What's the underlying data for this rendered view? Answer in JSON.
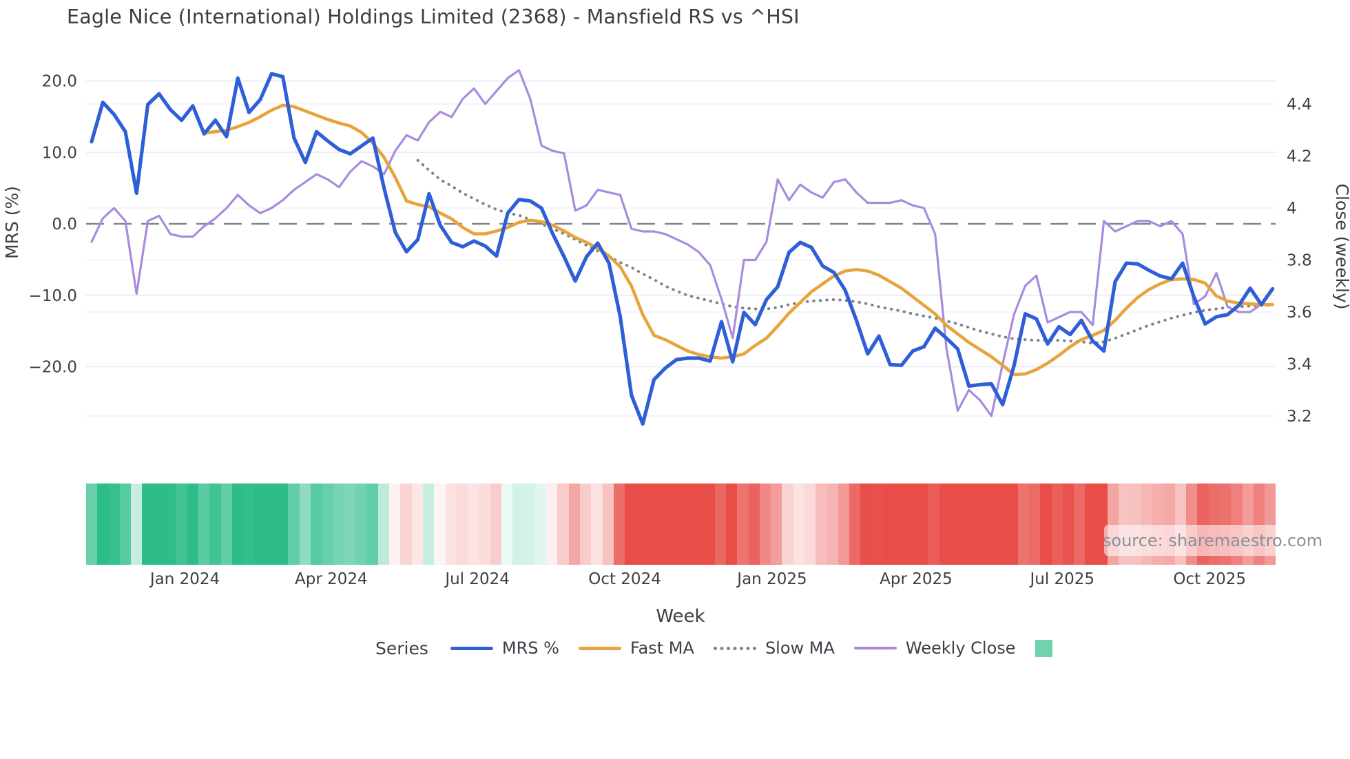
{
  "title": "Eagle Nice (International) Holdings Limited (2368) - Mansfield RS vs ^HSI",
  "source_note": "source: sharemaestro.com",
  "axes": {
    "y_left": {
      "label": "MRS (%)",
      "ticks": [
        "20.0",
        "10.0",
        "0.0",
        "−10.0",
        "−20.0"
      ],
      "tick_values": [
        20,
        10,
        0,
        -10,
        -20
      ]
    },
    "y_right": {
      "label": "Close (weekly)",
      "ticks": [
        "4.4",
        "4.2",
        "4",
        "3.8",
        "3.6",
        "3.4",
        "3.2"
      ],
      "tick_values": [
        4.4,
        4.2,
        4.0,
        3.8,
        3.6,
        3.4,
        3.2
      ]
    },
    "x": {
      "label": "Week",
      "ticks": [
        "Jan 2024",
        "Apr 2024",
        "Jul 2024",
        "Oct 2024",
        "Jan 2025",
        "Apr 2025",
        "Jul 2025",
        "Oct 2025"
      ],
      "tick_weeks": [
        8.3,
        21.3,
        34.3,
        47.4,
        60.5,
        73.3,
        86.3,
        99.4
      ]
    }
  },
  "legend": {
    "title": "Series",
    "items": [
      {
        "label": "MRS %",
        "style": "line",
        "color": "#2e5fd8"
      },
      {
        "label": "Fast MA",
        "style": "line",
        "color": "#e9a33b"
      },
      {
        "label": "Slow MA",
        "style": "dotted",
        "color": "#7d838d"
      },
      {
        "label": "Weekly Close",
        "style": "thinline",
        "color": "#a88be0"
      }
    ],
    "square_color": "#6fd4ab"
  },
  "colors": {
    "mrs": "#2e5fd8",
    "fast_ma": "#e9a33b",
    "slow_ma": "#7d838d",
    "weekly_close": "#a88be0",
    "zero_line": "#82868c",
    "grid": "#eaedf3",
    "tick_text": "#3c4043",
    "strip_green": "#2ebd89",
    "strip_red": "#e84d48"
  },
  "chart_data": {
    "type": "line",
    "x_unit": "week_index",
    "n_weeks": 105,
    "title": "Eagle Nice (International) Holdings Limited (2368) - Mansfield RS vs ^HSI",
    "xlabel": "Week",
    "ylabel_left": "MRS (%)",
    "ylabel_right": "Close (weekly)",
    "ylim_left": [
      -30,
      23
    ],
    "ylim_right": [
      3.09,
      4.57
    ],
    "zero_reference_line": 0,
    "grid": true,
    "legend_position": "bottom",
    "series": [
      {
        "name": "MRS %",
        "axis": "left",
        "values": [
          11.5,
          17.0,
          15.3,
          12.9,
          4.3,
          16.7,
          18.2,
          16.0,
          14.5,
          16.5,
          12.6,
          14.5,
          12.2,
          20.4,
          15.6,
          17.4,
          21.0,
          20.6,
          12.0,
          8.6,
          12.9,
          11.6,
          10.4,
          9.8,
          10.9,
          12.0,
          5.0,
          -1.2,
          -3.9,
          -2.2,
          4.2,
          -0.2,
          -2.6,
          -3.2,
          -2.4,
          -3.1,
          -4.5,
          1.5,
          3.4,
          3.2,
          2.2,
          -1.4,
          -4.6,
          -8.0,
          -4.6,
          -2.7,
          -5.5,
          -13.0,
          -24.0,
          -28.0,
          -21.8,
          -20.2,
          -19.0,
          -18.8,
          -18.8,
          -19.2,
          -13.7,
          -19.3,
          -12.4,
          -14.1,
          -10.6,
          -8.8,
          -4.0,
          -2.6,
          -3.3,
          -5.9,
          -6.8,
          -9.3,
          -13.5,
          -18.2,
          -15.7,
          -19.7,
          -19.8,
          -17.8,
          -17.2,
          -14.6,
          -16.0,
          -17.5,
          -22.7,
          -22.5,
          -22.4,
          -25.3,
          -19.9,
          -12.6,
          -13.3,
          -16.8,
          -14.4,
          -15.5,
          -13.5,
          -16.4,
          -17.8,
          -8.1,
          -5.5,
          -5.6,
          -6.5,
          -7.3,
          -7.7,
          -5.5,
          -10.2,
          -14.0,
          -13.0,
          -12.7,
          -11.4,
          -9.0,
          -11.3,
          -9.1
        ]
      },
      {
        "name": "Fast MA",
        "axis": "left",
        "values": [
          null,
          null,
          null,
          null,
          null,
          null,
          null,
          null,
          null,
          null,
          12.7,
          12.9,
          13.1,
          13.6,
          14.2,
          15.0,
          15.9,
          16.6,
          16.4,
          15.8,
          15.2,
          14.6,
          14.1,
          13.7,
          12.8,
          11.3,
          9.3,
          6.5,
          3.2,
          2.7,
          2.4,
          1.5,
          0.7,
          -0.5,
          -1.4,
          -1.4,
          -1.0,
          -0.5,
          0.2,
          0.5,
          0.3,
          -0.2,
          -1.0,
          -1.9,
          -2.6,
          -3.4,
          -4.5,
          -6.0,
          -8.7,
          -12.7,
          -15.6,
          -16.2,
          -17.0,
          -17.8,
          -18.3,
          -18.6,
          -18.8,
          -18.6,
          -18.2,
          -17.0,
          -16.0,
          -14.3,
          -12.5,
          -11.0,
          -9.5,
          -8.4,
          -7.3,
          -6.6,
          -6.4,
          -6.6,
          -7.2,
          -8.1,
          -9.0,
          -10.2,
          -11.4,
          -12.6,
          -14.2,
          -15.4,
          -16.6,
          -17.6,
          -18.6,
          -19.8,
          -21.1,
          -21.0,
          -20.4,
          -19.5,
          -18.4,
          -17.2,
          -16.2,
          -15.6,
          -14.9,
          -13.5,
          -11.8,
          -10.3,
          -9.2,
          -8.4,
          -7.8,
          -7.7,
          -7.8,
          -8.3,
          -10.1,
          -10.8,
          -11.1,
          -11.2,
          -11.3,
          -11.3
        ]
      },
      {
        "name": "Slow MA",
        "axis": "left",
        "values": [
          null,
          null,
          null,
          null,
          null,
          null,
          null,
          null,
          null,
          null,
          null,
          null,
          null,
          null,
          null,
          null,
          null,
          null,
          null,
          null,
          null,
          null,
          null,
          null,
          null,
          null,
          null,
          null,
          null,
          8.9,
          7.5,
          6.2,
          5.3,
          4.3,
          3.5,
          2.7,
          2.0,
          1.5,
          1.2,
          0.6,
          0.0,
          -0.7,
          -1.4,
          -2.2,
          -3.0,
          -3.8,
          -4.6,
          -5.4,
          -6.1,
          -7.0,
          -7.8,
          -8.7,
          -9.4,
          -10.0,
          -10.4,
          -10.8,
          -11.2,
          -11.6,
          -11.8,
          -11.9,
          -11.9,
          -11.7,
          -11.3,
          -11.0,
          -10.8,
          -10.7,
          -10.6,
          -10.7,
          -10.9,
          -11.2,
          -11.6,
          -11.9,
          -12.2,
          -12.6,
          -12.9,
          -13.2,
          -13.6,
          -14.0,
          -14.5,
          -15.0,
          -15.4,
          -15.8,
          -16.1,
          -16.2,
          -16.3,
          -16.3,
          -16.3,
          -16.4,
          -16.5,
          -16.7,
          -16.5,
          -16.0,
          -15.4,
          -14.8,
          -14.2,
          -13.7,
          -13.2,
          -12.8,
          -12.4,
          -12.1,
          -11.9,
          -11.7,
          -11.6,
          -11.5,
          -11.4,
          -11.4
        ]
      },
      {
        "name": "Weekly Close",
        "axis": "right",
        "values": [
          3.87,
          3.96,
          4.0,
          3.95,
          3.67,
          3.95,
          3.97,
          3.9,
          3.89,
          3.89,
          3.93,
          3.96,
          4.0,
          4.05,
          4.01,
          3.98,
          4.0,
          4.03,
          4.07,
          4.1,
          4.13,
          4.11,
          4.08,
          4.14,
          4.18,
          4.16,
          4.13,
          4.22,
          4.28,
          4.26,
          4.33,
          4.37,
          4.35,
          4.42,
          4.46,
          4.4,
          4.45,
          4.5,
          4.53,
          4.42,
          4.24,
          4.22,
          4.21,
          3.99,
          4.01,
          4.07,
          4.06,
          4.05,
          3.92,
          3.91,
          3.91,
          3.9,
          3.88,
          3.86,
          3.83,
          3.78,
          3.65,
          3.5,
          3.8,
          3.8,
          3.87,
          4.11,
          4.03,
          4.09,
          4.06,
          4.04,
          4.1,
          4.11,
          4.06,
          4.02,
          4.02,
          4.02,
          4.03,
          4.01,
          4.0,
          3.9,
          3.46,
          3.22,
          3.3,
          3.26,
          3.2,
          3.4,
          3.59,
          3.7,
          3.74,
          3.56,
          3.58,
          3.6,
          3.6,
          3.55,
          3.95,
          3.91,
          3.93,
          3.95,
          3.95,
          3.93,
          3.95,
          3.9,
          3.63,
          3.66,
          3.75,
          3.62,
          3.6,
          3.6,
          3.63
        ]
      }
    ],
    "heat_strip": {
      "description": "weekly relative-strength heat band, green positive / red negative, intensity scaled by |MRS|",
      "source_of_values": "MRS %"
    }
  }
}
